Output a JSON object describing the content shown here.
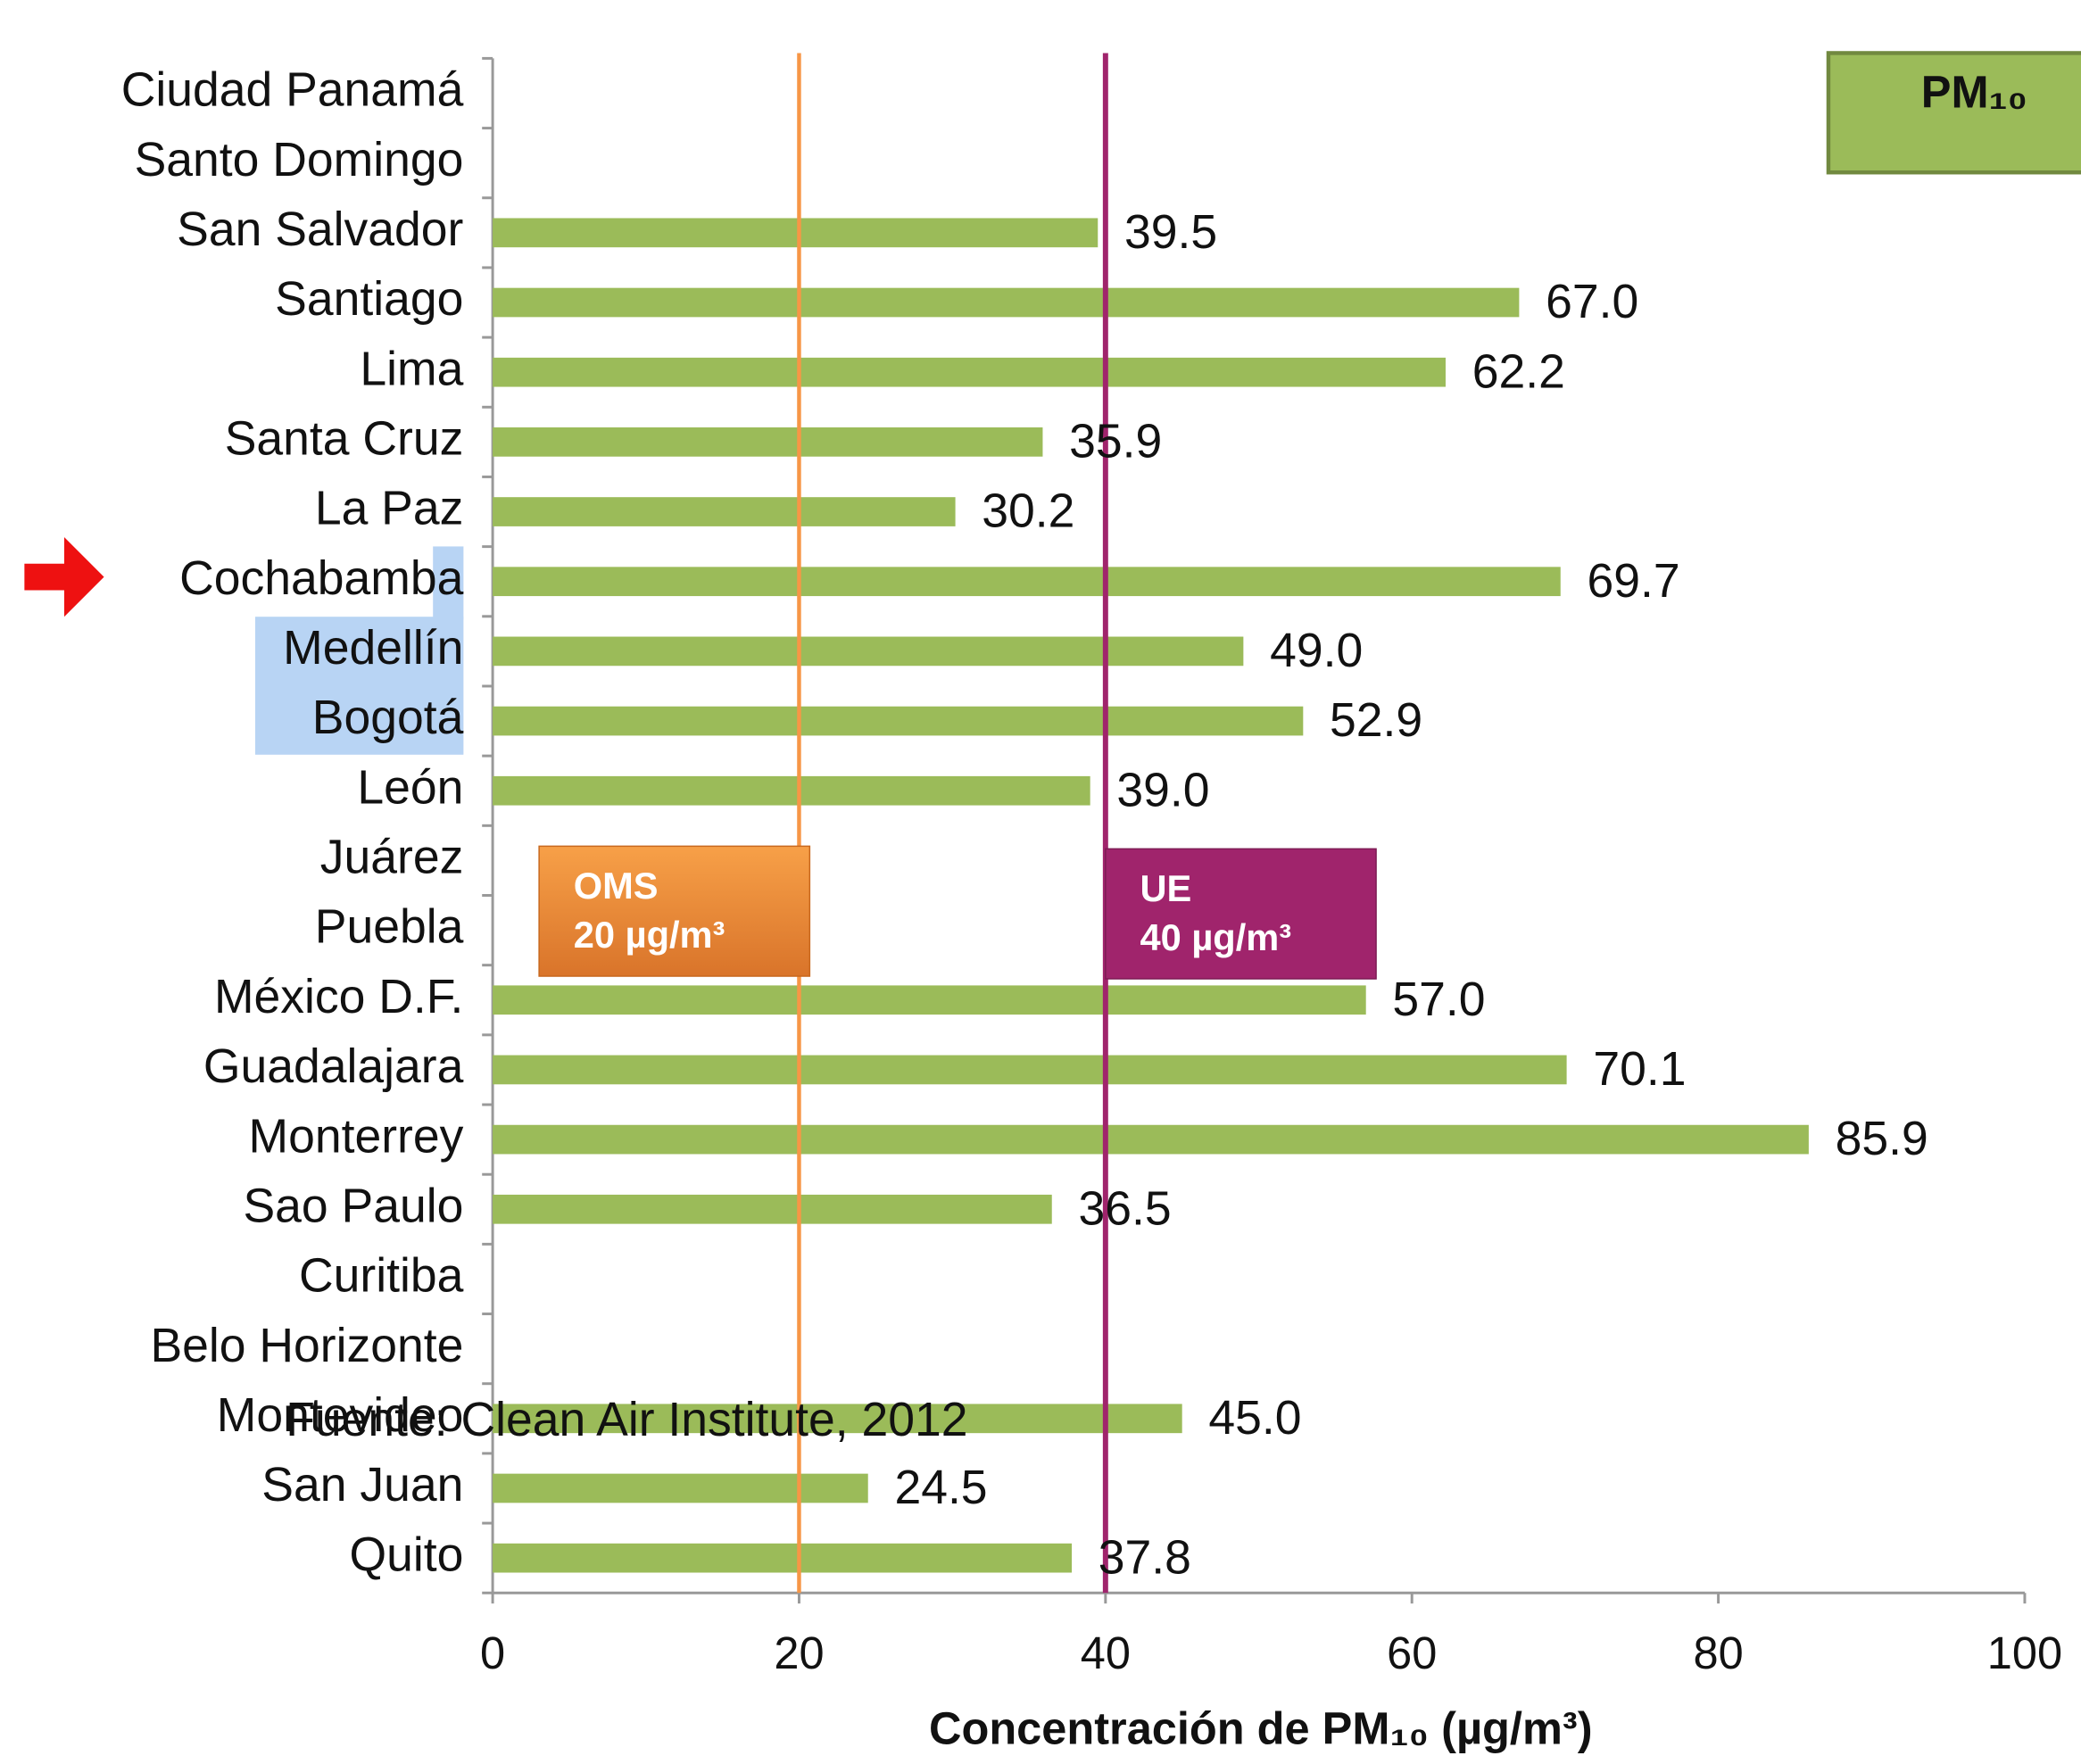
{
  "chart_data": {
    "type": "barh",
    "x_label": "Concentración de PM₁₀ (µg/m³)",
    "source": "Fuente: Clean Air Institute, 2012",
    "categories": [
      "Ciudad Panamá",
      "Santo Domingo",
      "San Salvador",
      "Santiago",
      "Lima",
      "Santa Cruz",
      "La Paz",
      "Cochabamba",
      "Medellín",
      "Bogotá",
      "León",
      "Juárez",
      "Puebla",
      "México D.F.",
      "Guadalajara",
      "Monterrey",
      "Sao Paulo",
      "Curitiba",
      "Belo Horizonte",
      "Montevideo",
      "San Juan",
      "Quito"
    ],
    "series": [
      {
        "name": "PM₁₀",
        "color": "#9bbb59",
        "values": [
          null,
          null,
          39.5,
          67,
          62.2,
          35.9,
          30.2,
          69.7,
          49,
          52.9,
          39,
          null,
          null,
          57,
          70.1,
          85.9,
          36.5,
          null,
          null,
          45,
          24.5,
          37.8
        ],
        "value_labels": [
          null,
          null,
          "39.5",
          "67.0",
          "62.2",
          "35.9",
          "30.2",
          "69.7",
          "49.0",
          "52.9",
          "39.0",
          null,
          null,
          "57.0",
          "70.1",
          "85.9",
          "36.5",
          null,
          null,
          "45.0",
          "24.5",
          "37.8"
        ]
      }
    ],
    "xlim": [
      0,
      100
    ],
    "xticks": [
      0,
      20,
      40,
      60,
      80,
      100
    ],
    "reference_lines": [
      {
        "value": 20,
        "color": "#f79646",
        "label": [
          "OMS",
          "20 µg/m³"
        ]
      },
      {
        "value": 40,
        "color": "#a0246c",
        "label": [
          "UE",
          "40 µg/m³"
        ]
      }
    ]
  }
}
